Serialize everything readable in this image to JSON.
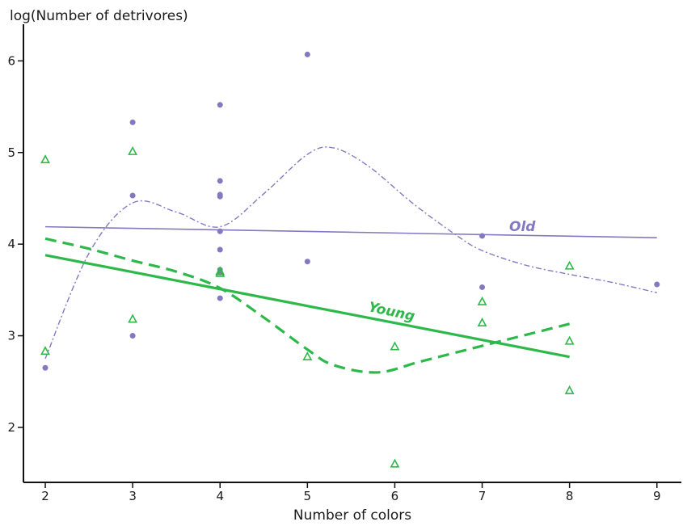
{
  "chart_data": {
    "type": "scatter",
    "title": "",
    "xlabel": "Number of colors",
    "ylabel": "log(Number of detrivores)",
    "xlim": [
      1.75,
      9.28
    ],
    "ylim": [
      1.4,
      6.4
    ],
    "xticks": [
      2,
      3,
      4,
      5,
      6,
      7,
      8,
      9
    ],
    "yticks": [
      2,
      3,
      4,
      5,
      6
    ],
    "grid": false,
    "colors": {
      "old": "#8478c0",
      "young": "#2db84a",
      "axis": "#111111"
    },
    "series": [
      {
        "name": "Old",
        "marker": "circle",
        "points": [
          [
            2,
            2.65
          ],
          [
            3,
            5.33
          ],
          [
            3,
            4.53
          ],
          [
            3,
            3.0
          ],
          [
            4,
            5.52
          ],
          [
            4,
            4.69
          ],
          [
            4,
            4.54
          ],
          [
            4,
            4.52
          ],
          [
            4,
            4.14
          ],
          [
            4,
            3.94
          ],
          [
            4,
            3.72
          ],
          [
            4,
            3.69
          ],
          [
            4,
            3.41
          ],
          [
            5,
            6.07
          ],
          [
            5,
            3.81
          ],
          [
            7,
            4.09
          ],
          [
            7,
            3.53
          ],
          [
            9,
            3.56
          ]
        ],
        "fit_line": [
          [
            2,
            4.19
          ],
          [
            9,
            4.07
          ]
        ],
        "smooth_curve": [
          [
            2,
            2.75
          ],
          [
            2.5,
            3.9
          ],
          [
            3,
            4.45
          ],
          [
            3.5,
            4.35
          ],
          [
            4,
            4.19
          ],
          [
            4.5,
            4.55
          ],
          [
            5,
            4.98
          ],
          [
            5.3,
            5.05
          ],
          [
            5.7,
            4.85
          ],
          [
            6.2,
            4.45
          ],
          [
            6.7,
            4.1
          ],
          [
            7,
            3.93
          ],
          [
            7.5,
            3.77
          ],
          [
            8,
            3.67
          ],
          [
            8.5,
            3.58
          ],
          [
            9,
            3.47
          ]
        ],
        "label": "Old"
      },
      {
        "name": "Young",
        "marker": "triangle",
        "points": [
          [
            2,
            4.92
          ],
          [
            2,
            2.83
          ],
          [
            3,
            5.01
          ],
          [
            3,
            3.18
          ],
          [
            4,
            3.7
          ],
          [
            4,
            3.68
          ],
          [
            5,
            2.77
          ],
          [
            6,
            2.88
          ],
          [
            6,
            1.6
          ],
          [
            7,
            3.37
          ],
          [
            7,
            3.14
          ],
          [
            8,
            3.76
          ],
          [
            8,
            2.94
          ],
          [
            8,
            2.4
          ]
        ],
        "fit_line": [
          [
            2,
            3.88
          ],
          [
            8,
            2.77
          ]
        ],
        "smooth_curve": [
          [
            2,
            4.06
          ],
          [
            2.5,
            3.95
          ],
          [
            3,
            3.82
          ],
          [
            3.5,
            3.7
          ],
          [
            4,
            3.52
          ],
          [
            4.5,
            3.2
          ],
          [
            5,
            2.85
          ],
          [
            5.3,
            2.68
          ],
          [
            5.8,
            2.6
          ],
          [
            6.3,
            2.72
          ],
          [
            7,
            2.89
          ],
          [
            7.5,
            3.01
          ],
          [
            8,
            3.13
          ]
        ],
        "label": "Young"
      }
    ]
  }
}
